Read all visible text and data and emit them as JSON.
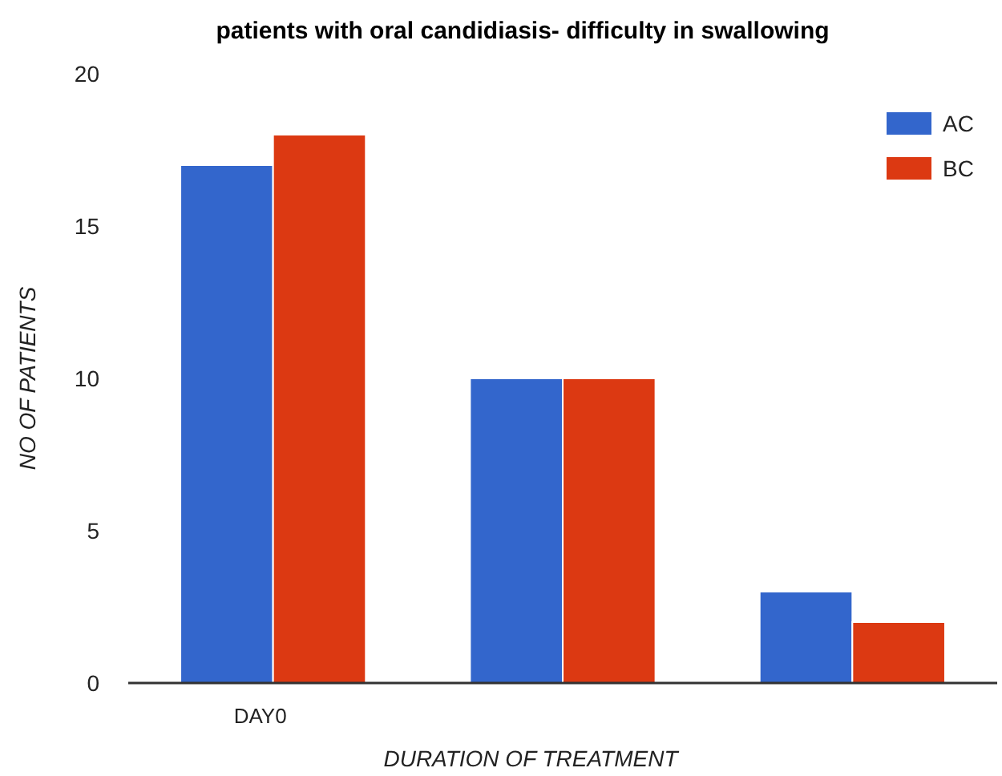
{
  "chart_data": {
    "type": "bar",
    "title": "patients with oral candidiasis- difficulty in swallowing",
    "xlabel": "DURATION OF TREATMENT",
    "ylabel": "NO OF PATIENTS",
    "categories": [
      "DAY0",
      null,
      null
    ],
    "series": [
      {
        "name": "AC",
        "color": "#3366cc",
        "values": [
          17,
          10,
          3
        ]
      },
      {
        "name": "BC",
        "color": "#dc3912",
        "values": [
          18,
          10,
          2
        ]
      }
    ],
    "ylim": [
      0,
      20
    ],
    "yticks": [
      0,
      5,
      10,
      15,
      20
    ],
    "legend": "top right"
  }
}
